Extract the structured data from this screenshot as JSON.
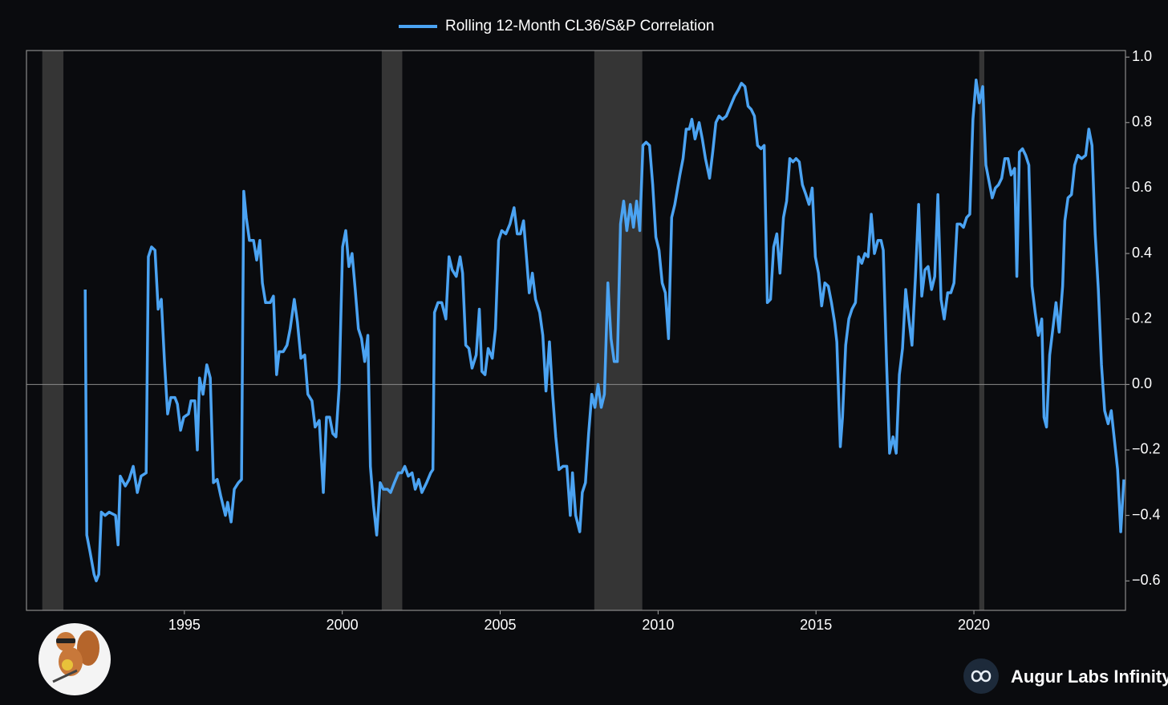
{
  "chart_data": {
    "type": "line",
    "x": [
      1991.86,
      1991.91,
      1992.01,
      1992.14,
      1992.21,
      1992.29,
      1992.37,
      1992.49,
      1992.62,
      1992.82,
      1992.9,
      1992.97,
      1993.13,
      1993.25,
      1993.38,
      1993.51,
      1993.63,
      1993.79,
      1993.86,
      1993.96,
      1994.07,
      1994.17,
      1994.27,
      1994.37,
      1994.47,
      1994.57,
      1994.7,
      1994.78,
      1994.88,
      1994.98,
      1995.13,
      1995.21,
      1995.33,
      1995.41,
      1995.48,
      1995.59,
      1995.71,
      1995.82,
      1995.92,
      1996.04,
      1996.15,
      1996.3,
      1996.37,
      1996.48,
      1996.58,
      1996.71,
      1996.81,
      1996.88,
      1996.96,
      1997.06,
      1997.19,
      1997.29,
      1997.39,
      1997.47,
      1997.57,
      1997.72,
      1997.82,
      1997.92,
      1998.0,
      1998.13,
      1998.25,
      1998.35,
      1998.48,
      1998.58,
      1998.69,
      1998.81,
      1998.91,
      1999.04,
      1999.14,
      1999.27,
      1999.4,
      1999.5,
      1999.6,
      1999.7,
      1999.8,
      1999.9,
      2000.01,
      2000.11,
      2000.21,
      2000.31,
      2000.41,
      2000.51,
      2000.61,
      2000.71,
      2000.81,
      2000.89,
      2000.99,
      2001.09,
      2001.2,
      2001.3,
      2001.43,
      2001.53,
      2001.65,
      2001.78,
      2001.88,
      2001.98,
      2002.09,
      2002.21,
      2002.31,
      2002.42,
      2002.52,
      2002.67,
      2002.8,
      2002.87,
      2002.92,
      2003.03,
      2003.15,
      2003.28,
      2003.38,
      2003.48,
      2003.61,
      2003.73,
      2003.81,
      2003.91,
      2004.01,
      2004.11,
      2004.24,
      2004.34,
      2004.42,
      2004.52,
      2004.62,
      2004.75,
      2004.85,
      2004.95,
      2005.05,
      2005.18,
      2005.31,
      2005.44,
      2005.54,
      2005.64,
      2005.74,
      2005.84,
      2005.92,
      2006.02,
      2006.12,
      2006.25,
      2006.35,
      2006.45,
      2006.56,
      2006.66,
      2006.76,
      2006.86,
      2006.99,
      2007.11,
      2007.22,
      2007.29,
      2007.39,
      2007.52,
      2007.6,
      2007.7,
      2007.8,
      2007.9,
      2008.0,
      2008.1,
      2008.2,
      2008.3,
      2008.41,
      2008.51,
      2008.61,
      2008.71,
      2008.81,
      2008.91,
      2009.01,
      2009.12,
      2009.22,
      2009.32,
      2009.42,
      2009.52,
      2009.62,
      2009.73,
      2009.83,
      2009.93,
      2010.03,
      2010.13,
      2010.23,
      2010.33,
      2010.43,
      2010.53,
      2010.69,
      2010.79,
      2010.89,
      2010.99,
      2011.07,
      2011.17,
      2011.3,
      2011.4,
      2011.5,
      2011.63,
      2011.73,
      2011.83,
      2011.93,
      2012.04,
      2012.16,
      2012.29,
      2012.42,
      2012.54,
      2012.64,
      2012.75,
      2012.85,
      2012.95,
      2013.05,
      2013.15,
      2013.26,
      2013.36,
      2013.46,
      2013.56,
      2013.66,
      2013.76,
      2013.86,
      2013.97,
      2014.07,
      2014.17,
      2014.27,
      2014.37,
      2014.47,
      2014.57,
      2014.68,
      2014.78,
      2014.88,
      2014.98,
      2015.08,
      2015.18,
      2015.28,
      2015.39,
      2015.49,
      2015.59,
      2015.66,
      2015.77,
      2015.84,
      2015.94,
      2016.04,
      2016.14,
      2016.25,
      2016.35,
      2016.45,
      2016.55,
      2016.65,
      2016.75,
      2016.85,
      2016.96,
      2017.06,
      2017.13,
      2017.23,
      2017.33,
      2017.44,
      2017.54,
      2017.64,
      2017.74,
      2017.84,
      2017.94,
      2018.04,
      2018.15,
      2018.25,
      2018.35,
      2018.45,
      2018.55,
      2018.66,
      2018.76,
      2018.86,
      2018.96,
      2019.06,
      2019.17,
      2019.27,
      2019.37,
      2019.47,
      2019.57,
      2019.67,
      2019.77,
      2019.87,
      2019.97,
      2020.07,
      2020.17,
      2020.28,
      2020.38,
      2020.48,
      2020.58,
      2020.68,
      2020.78,
      2020.88,
      2020.98,
      2021.08,
      2021.18,
      2021.29,
      2021.36,
      2021.44,
      2021.54,
      2021.64,
      2021.74,
      2021.84,
      2021.94,
      2022.04,
      2022.15,
      2022.22,
      2022.3,
      2022.4,
      2022.5,
      2022.6,
      2022.7,
      2022.81,
      2022.88,
      2022.98,
      2023.09,
      2023.19,
      2023.29,
      2023.41,
      2023.54,
      2023.64,
      2023.74,
      2023.84,
      2023.94,
      2024.04,
      2024.14,
      2024.25,
      2024.35,
      2024.45,
      2024.55,
      2024.65,
      2024.75
    ],
    "series": [
      {
        "name": "Rolling 12-Month CL36/S&P Correlation",
        "color": "#4ba3f2",
        "values": [
          0.29,
          -0.46,
          -0.51,
          -0.58,
          -0.6,
          -0.58,
          -0.39,
          -0.4,
          -0.39,
          -0.4,
          -0.49,
          -0.28,
          -0.31,
          -0.29,
          -0.25,
          -0.33,
          -0.28,
          -0.27,
          0.39,
          0.42,
          0.41,
          0.23,
          0.26,
          0.07,
          -0.09,
          -0.04,
          -0.04,
          -0.06,
          -0.14,
          -0.1,
          -0.09,
          -0.05,
          -0.05,
          -0.2,
          0.02,
          -0.03,
          0.06,
          0.02,
          -0.3,
          -0.29,
          -0.34,
          -0.4,
          -0.36,
          -0.42,
          -0.32,
          -0.3,
          -0.29,
          0.59,
          0.51,
          0.44,
          0.44,
          0.38,
          0.44,
          0.31,
          0.25,
          0.25,
          0.27,
          0.03,
          0.1,
          0.1,
          0.12,
          0.17,
          0.26,
          0.19,
          0.08,
          0.09,
          -0.03,
          -0.05,
          -0.13,
          -0.11,
          -0.33,
          -0.1,
          -0.1,
          -0.15,
          -0.16,
          -0.01,
          0.42,
          0.47,
          0.36,
          0.4,
          0.29,
          0.17,
          0.14,
          0.07,
          0.15,
          -0.25,
          -0.37,
          -0.46,
          -0.3,
          -0.32,
          -0.32,
          -0.33,
          -0.3,
          -0.27,
          -0.27,
          -0.25,
          -0.28,
          -0.27,
          -0.32,
          -0.29,
          -0.33,
          -0.3,
          -0.27,
          -0.26,
          0.22,
          0.25,
          0.25,
          0.2,
          0.39,
          0.35,
          0.33,
          0.39,
          0.34,
          0.12,
          0.11,
          0.05,
          0.09,
          0.23,
          0.04,
          0.03,
          0.11,
          0.08,
          0.17,
          0.44,
          0.47,
          0.46,
          0.49,
          0.54,
          0.46,
          0.46,
          0.5,
          0.38,
          0.28,
          0.34,
          0.26,
          0.22,
          0.15,
          -0.02,
          0.13,
          -0.03,
          -0.16,
          -0.26,
          -0.25,
          -0.25,
          -0.4,
          -0.27,
          -0.4,
          -0.45,
          -0.33,
          -0.3,
          -0.15,
          -0.03,
          -0.07,
          0.0,
          -0.07,
          -0.03,
          0.31,
          0.14,
          0.07,
          0.07,
          0.49,
          0.56,
          0.47,
          0.55,
          0.48,
          0.56,
          0.47,
          0.73,
          0.74,
          0.73,
          0.61,
          0.45,
          0.41,
          0.31,
          0.28,
          0.14,
          0.51,
          0.55,
          0.64,
          0.69,
          0.78,
          0.78,
          0.81,
          0.75,
          0.8,
          0.75,
          0.69,
          0.63,
          0.71,
          0.8,
          0.82,
          0.81,
          0.82,
          0.85,
          0.88,
          0.9,
          0.92,
          0.91,
          0.85,
          0.84,
          0.82,
          0.73,
          0.72,
          0.73,
          0.25,
          0.26,
          0.42,
          0.46,
          0.34,
          0.51,
          0.56,
          0.69,
          0.68,
          0.69,
          0.68,
          0.61,
          0.58,
          0.55,
          0.6,
          0.39,
          0.34,
          0.24,
          0.31,
          0.3,
          0.25,
          0.19,
          0.13,
          -0.19,
          -0.1,
          0.12,
          0.2,
          0.23,
          0.25,
          0.39,
          0.37,
          0.4,
          0.39,
          0.52,
          0.4,
          0.44,
          0.44,
          0.41,
          0.08,
          -0.21,
          -0.16,
          -0.21,
          0.03,
          0.11,
          0.29,
          0.2,
          0.12,
          0.33,
          0.55,
          0.27,
          0.35,
          0.36,
          0.29,
          0.33,
          0.58,
          0.26,
          0.2,
          0.28,
          0.28,
          0.31,
          0.49,
          0.49,
          0.48,
          0.51,
          0.52,
          0.81,
          0.93,
          0.86,
          0.91,
          0.67,
          0.62,
          0.57,
          0.6,
          0.61,
          0.63,
          0.69,
          0.69,
          0.64,
          0.66,
          0.33,
          0.71,
          0.72,
          0.7,
          0.67,
          0.3,
          0.22,
          0.15,
          0.2,
          -0.1,
          -0.13,
          0.09,
          0.17,
          0.25,
          0.16,
          0.3,
          0.5,
          0.57,
          0.58,
          0.67,
          0.7,
          0.69,
          0.7,
          0.78,
          0.73,
          0.46,
          0.29,
          0.06,
          -0.08,
          -0.12,
          -0.08,
          -0.17,
          -0.26,
          -0.45,
          -0.29
        ]
      }
    ],
    "xlim": [
      1990,
      2024.8
    ],
    "ylim": [
      -0.69,
      1.02
    ],
    "xticks": [
      1995,
      2000,
      2005,
      2010,
      2015,
      2020
    ],
    "yticks": [
      {
        "value": 1,
        "label": "1.0"
      },
      0.8,
      0.6,
      0.4,
      0.2,
      {
        "value": 0,
        "label": "0.0"
      },
      {
        "value": -0.2,
        "label": "−0.2"
      },
      {
        "value": -0.4,
        "label": "−0.4"
      },
      {
        "value": -0.6,
        "label": "−0.6"
      }
    ],
    "reference_line": 0,
    "shaded_periods": [
      [
        1990.5,
        1991.17
      ],
      [
        2001.25,
        2001.9
      ],
      [
        2007.98,
        2009.5
      ],
      [
        2020.17,
        2020.33
      ]
    ],
    "shade_color": "#353535",
    "legend": "top"
  },
  "branding": "Augur Labs Infinity"
}
